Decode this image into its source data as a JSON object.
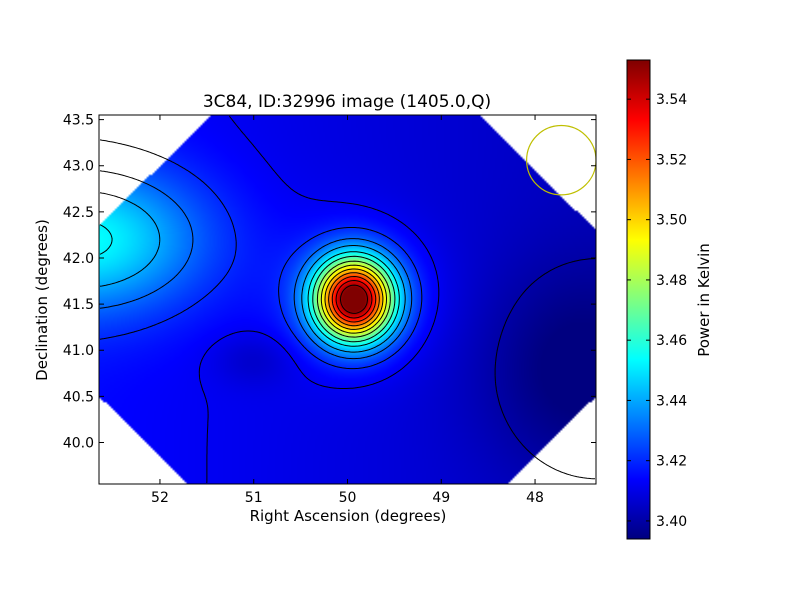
{
  "chart_data": {
    "type": "heatmap",
    "title": "3C84, ID:32996 image (1405.0,Q)",
    "xlabel": "Right Ascension (degrees)",
    "ylabel": "Declination (degrees)",
    "colorbar_label": "Power in Kelvin",
    "colormap": "jet",
    "xlim": [
      52.65,
      47.35
    ],
    "ylim": [
      39.55,
      43.55
    ],
    "x_ticks": [
      52,
      51,
      50,
      49,
      48
    ],
    "x_tick_labels": [
      "52",
      "51",
      "50",
      "49",
      "48"
    ],
    "y_ticks": [
      40.0,
      40.5,
      41.0,
      41.5,
      42.0,
      42.5,
      43.0,
      43.5
    ],
    "y_tick_labels": [
      "40.0",
      "40.5",
      "41.0",
      "41.5",
      "42.0",
      "42.5",
      "43.0",
      "43.5"
    ],
    "clim": [
      3.394,
      3.553
    ],
    "colorbar_ticks": [
      3.4,
      3.42,
      3.44,
      3.46,
      3.48,
      3.5,
      3.52,
      3.54
    ],
    "colorbar_tick_labels": [
      "3.40",
      "3.42",
      "3.44",
      "3.46",
      "3.48",
      "3.50",
      "3.52",
      "3.54"
    ],
    "peak": {
      "ra": 49.93,
      "dec": 41.55,
      "value": 3.553
    },
    "beam_circle": {
      "ra": 47.72,
      "dec": 43.06,
      "radius_deg": 0.37,
      "color": "#bfbf00"
    },
    "contour_color": "#000000",
    "contour_levels": [
      3.4,
      3.412,
      3.42,
      3.43,
      3.44,
      3.452,
      3.463,
      3.476,
      3.488,
      3.5,
      3.512,
      3.524,
      3.536,
      3.548
    ]
  }
}
